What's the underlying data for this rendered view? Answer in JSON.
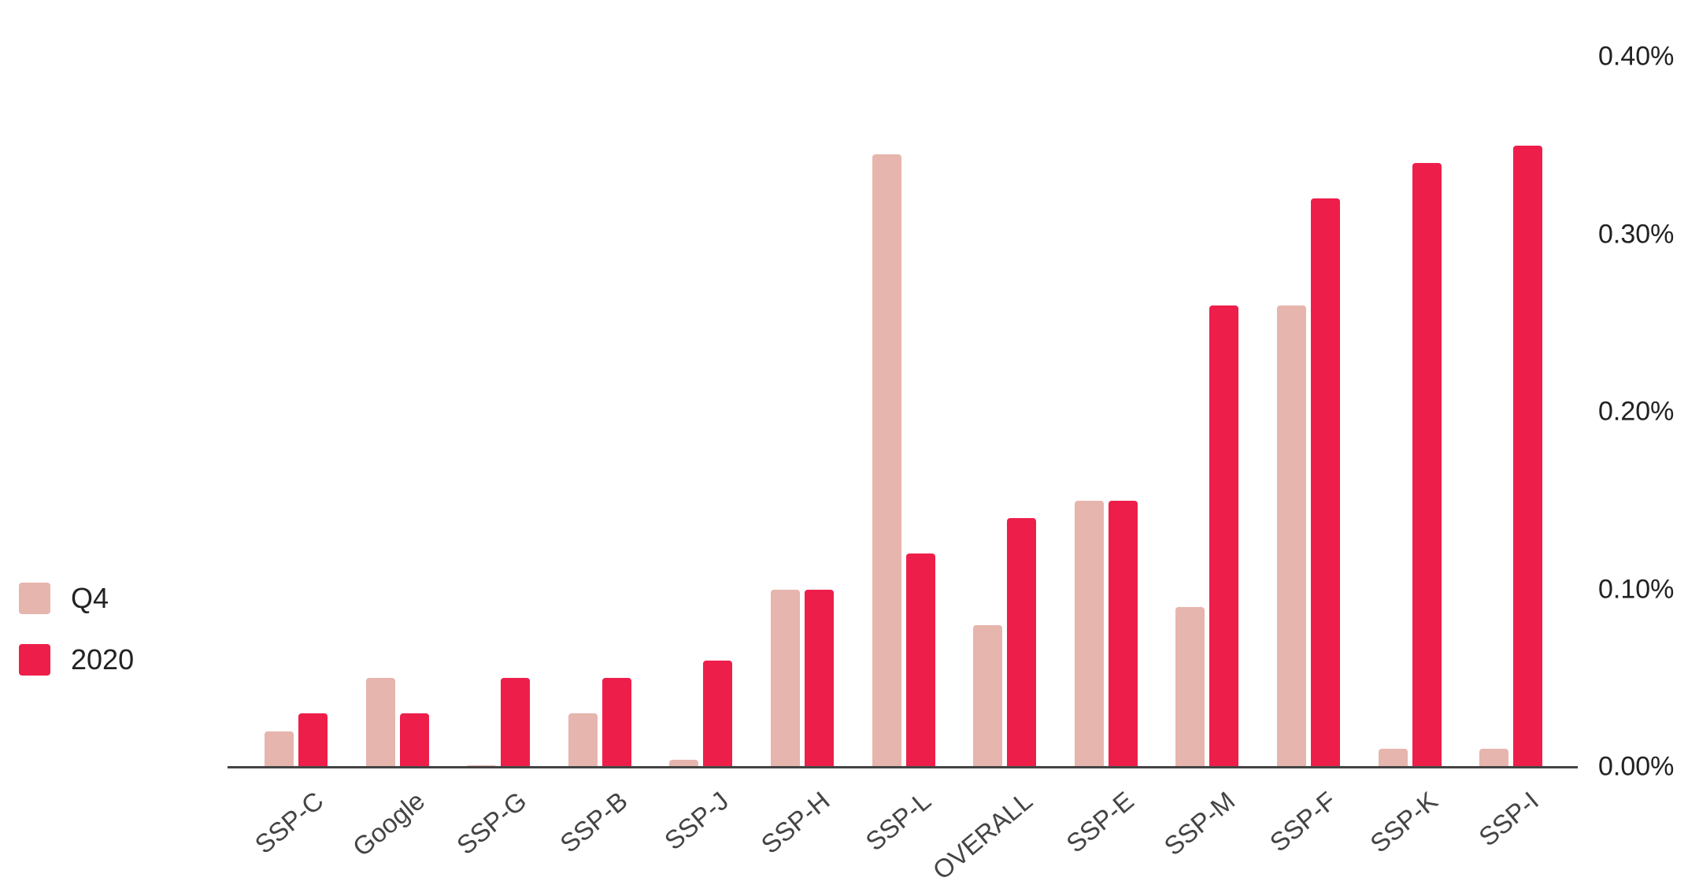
{
  "chart_data": {
    "type": "bar",
    "title": "",
    "xlabel": "",
    "ylabel": "",
    "y_axis_position": "right",
    "ylim": [
      0,
      0.4
    ],
    "yticks": [
      "0.00%",
      "0.10%",
      "0.20%",
      "0.30%",
      "0.40%"
    ],
    "grid": false,
    "legend_position": "left",
    "categories": [
      "SSP-C",
      "Google",
      "SSP-G",
      "SSP-B",
      "SSP-J",
      "SSP-H",
      "SSP-L",
      "OVERALL",
      "SSP-E",
      "SSP-M",
      "SSP-F",
      "SSP-K",
      "SSP-I"
    ],
    "series": [
      {
        "name": "Q4",
        "color": "#E6B5AD",
        "values": [
          0.02,
          0.05,
          0.001,
          0.03,
          0.004,
          0.1,
          0.345,
          0.08,
          0.15,
          0.09,
          0.26,
          0.01,
          0.01
        ]
      },
      {
        "name": "2020",
        "color": "#EE1E4B",
        "values": [
          0.03,
          0.03,
          0.05,
          0.05,
          0.06,
          0.1,
          0.12,
          0.14,
          0.15,
          0.26,
          0.32,
          0.34,
          0.35
        ]
      }
    ]
  },
  "legend": {
    "items": [
      {
        "label": "Q4",
        "color": "#E6B5AD"
      },
      {
        "label": "2020",
        "color": "#EE1E4B"
      }
    ]
  }
}
